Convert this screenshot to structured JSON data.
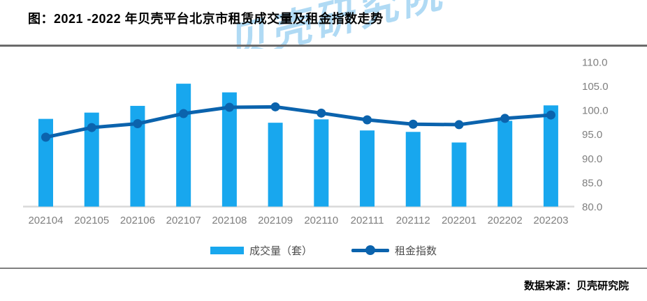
{
  "title": "图：2021 -2022 年贝壳平台北京市租赁成交量及租金指数走势",
  "watermark": "贝壳研究院",
  "source": "数据来源：贝壳研究院",
  "colors": {
    "bar": "#18A7EE",
    "line": "#0B63AD",
    "axis_text": "#7F7F7F",
    "baseline": "#D9D9D9",
    "rule_top": "#6A6A6A",
    "rule_bottom": "#7F7F7F",
    "legend_text": "#4D4D4D",
    "watermark": "#96CDF0"
  },
  "legend": [
    {
      "label": "成交量（套）",
      "type": "bar"
    },
    {
      "label": "租金指数",
      "type": "line"
    }
  ],
  "chart_data": {
    "type": "bar+line",
    "title": "2021-2022 年贝壳平台北京市租赁成交量及租金指数走势",
    "categories": [
      "202104",
      "202105",
      "202106",
      "202107",
      "202108",
      "202109",
      "202110",
      "202111",
      "202112",
      "202201",
      "202202",
      "202203"
    ],
    "series": [
      {
        "name": "成交量（套）",
        "type": "bar",
        "axis": "left-hidden",
        "note": "volume axis not labeled in image; values are bar-top positions expressed on the visible right-axis scale",
        "values": [
          98.2,
          99.5,
          100.9,
          105.5,
          103.7,
          97.4,
          98.1,
          95.8,
          95.5,
          93.3,
          97.8,
          101.0
        ]
      },
      {
        "name": "租金指数",
        "type": "line",
        "axis": "right",
        "values": [
          94.4,
          96.4,
          97.2,
          99.3,
          100.6,
          100.7,
          99.4,
          98.0,
          97.1,
          97.0,
          98.3,
          99.0
        ]
      }
    ],
    "right_axis": {
      "min": 80.0,
      "max": 110.0,
      "step": 5.0,
      "tick_labels": [
        "110.0",
        "105.0",
        "100.0",
        "95.0",
        "90.0",
        "85.0",
        "80.0"
      ]
    },
    "grid": false,
    "legend_position": "bottom"
  }
}
